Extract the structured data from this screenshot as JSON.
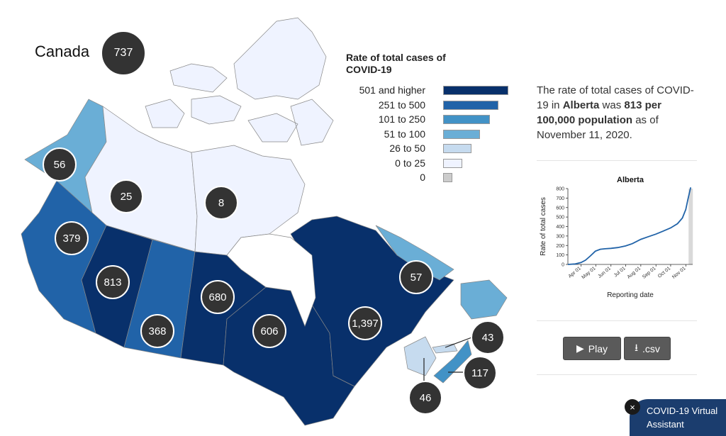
{
  "map": {
    "title": "Canada",
    "national_rate": "737",
    "regions": [
      {
        "id": "YT",
        "value": "56",
        "color": "#6aaed6"
      },
      {
        "id": "NT",
        "value": "25",
        "color": "#eff3ff"
      },
      {
        "id": "NU",
        "value": "8",
        "color": "#eff3ff"
      },
      {
        "id": "BC",
        "value": "379",
        "color": "#2163a8"
      },
      {
        "id": "AB",
        "value": "813",
        "color": "#08306b"
      },
      {
        "id": "SK",
        "value": "368",
        "color": "#2163a8"
      },
      {
        "id": "MB",
        "value": "680",
        "color": "#08306b"
      },
      {
        "id": "ON",
        "value": "606",
        "color": "#08306b"
      },
      {
        "id": "QC",
        "value": "1,397",
        "color": "#08306b"
      },
      {
        "id": "NL",
        "value": "57",
        "color": "#6aaed6"
      },
      {
        "id": "NB",
        "value": "46",
        "color": "#c6dbef"
      },
      {
        "id": "PE",
        "value": "43",
        "color": "#c6dbef"
      },
      {
        "id": "NS",
        "value": "117",
        "color": "#4292c6"
      }
    ]
  },
  "legend": {
    "title": "Rate of total cases of COVID-19",
    "items": [
      {
        "label": "501 and higher",
        "color": "#08306b",
        "width": 1.0
      },
      {
        "label": "251 to 500",
        "color": "#2163a8",
        "width": 0.85
      },
      {
        "label": "101 to 250",
        "color": "#4292c6",
        "width": 0.72
      },
      {
        "label": "51 to 100",
        "color": "#6aaed6",
        "width": 0.57
      },
      {
        "label": "26 to 50",
        "color": "#c6dbef",
        "width": 0.43
      },
      {
        "label": "0 to 25",
        "color": "#eff3ff",
        "width": 0.29
      },
      {
        "label": "0",
        "color": "#cccccc",
        "width": 0.14
      }
    ]
  },
  "info": {
    "prefix": "The rate of total cases of COVID-19 in ",
    "province": "Alberta",
    "mid": " was ",
    "rate": "813",
    "rate_suffix": " per 100,000 population",
    "suffix": " as of November 11, 2020."
  },
  "chart_data": {
    "type": "line",
    "title": "Alberta",
    "xlabel": "Reporting date",
    "ylabel": "Rate of total cases",
    "ylim": [
      0,
      800
    ],
    "yticks": [
      0,
      100,
      200,
      300,
      400,
      500,
      600,
      700,
      800
    ],
    "xticks": [
      "Apr 01",
      "May 01",
      "Jun 01",
      "Jul 01",
      "Aug 01",
      "Sep 01",
      "Oct 01",
      "Nov 01"
    ],
    "x": [
      "2020-03-05",
      "2020-03-20",
      "2020-04-01",
      "2020-04-10",
      "2020-04-20",
      "2020-04-30",
      "2020-05-10",
      "2020-05-20",
      "2020-06-01",
      "2020-06-15",
      "2020-07-01",
      "2020-07-15",
      "2020-08-01",
      "2020-08-15",
      "2020-09-01",
      "2020-09-15",
      "2020-10-01",
      "2020-10-15",
      "2020-10-25",
      "2020-11-01",
      "2020-11-05",
      "2020-11-11"
    ],
    "y": [
      0,
      5,
      20,
      45,
      90,
      140,
      160,
      165,
      170,
      178,
      195,
      220,
      265,
      290,
      320,
      350,
      385,
      430,
      490,
      580,
      680,
      813
    ],
    "highlight_date": "2020-11-11",
    "color": "#2163a8"
  },
  "buttons": {
    "play": "Play",
    "csv": ".csv"
  },
  "assistant": {
    "label": "COVID-19 Virtual Assistant",
    "close": "×"
  }
}
